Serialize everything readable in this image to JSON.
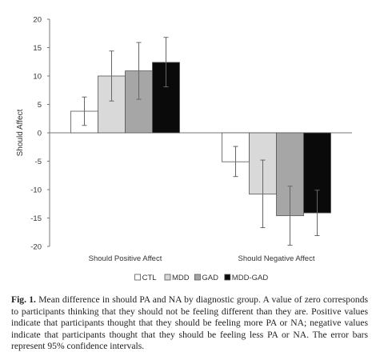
{
  "chart_data": {
    "type": "bar",
    "ylabel": "Should Affect",
    "ylim": [
      -20,
      20
    ],
    "yticks": [
      20,
      15,
      10,
      5,
      0,
      -5,
      -10,
      -15,
      -20
    ],
    "categories": [
      "Should Positive Affect",
      "Should Negative Affect"
    ],
    "error_bars": "95% confidence intervals",
    "legend_position": "bottom-center",
    "grid": false,
    "series": [
      {
        "name": "CTL",
        "color": "#ffffff",
        "values": [
          3.8,
          -5.1
        ],
        "err_low": [
          1.3,
          -7.7
        ],
        "err_high": [
          6.3,
          -2.4
        ]
      },
      {
        "name": "MDD",
        "color": "#d9d9d9",
        "values": [
          10.0,
          -10.8
        ],
        "err_low": [
          5.6,
          -16.7
        ],
        "err_high": [
          14.4,
          -4.8
        ]
      },
      {
        "name": "GAD",
        "color": "#a6a6a6",
        "values": [
          10.9,
          -14.6
        ],
        "err_low": [
          5.9,
          -19.8
        ],
        "err_high": [
          15.9,
          -9.4
        ]
      },
      {
        "name": "MDD-GAD",
        "color": "#0a0a0a",
        "values": [
          12.4,
          -14.1
        ],
        "err_low": [
          8.1,
          -18.1
        ],
        "err_high": [
          16.8,
          -10.1
        ]
      }
    ]
  },
  "caption": {
    "label": "Fig. 1.",
    "text": "Mean difference in should PA and NA by diagnostic group. A value of zero corresponds to participants thinking that they should not be feeling different than they are. Positive values indicate that participants thought that they should be feeling more PA or NA; negative values indicate that participants thought that they should be feeling less PA or NA. The error bars represent 95% confidence intervals."
  }
}
